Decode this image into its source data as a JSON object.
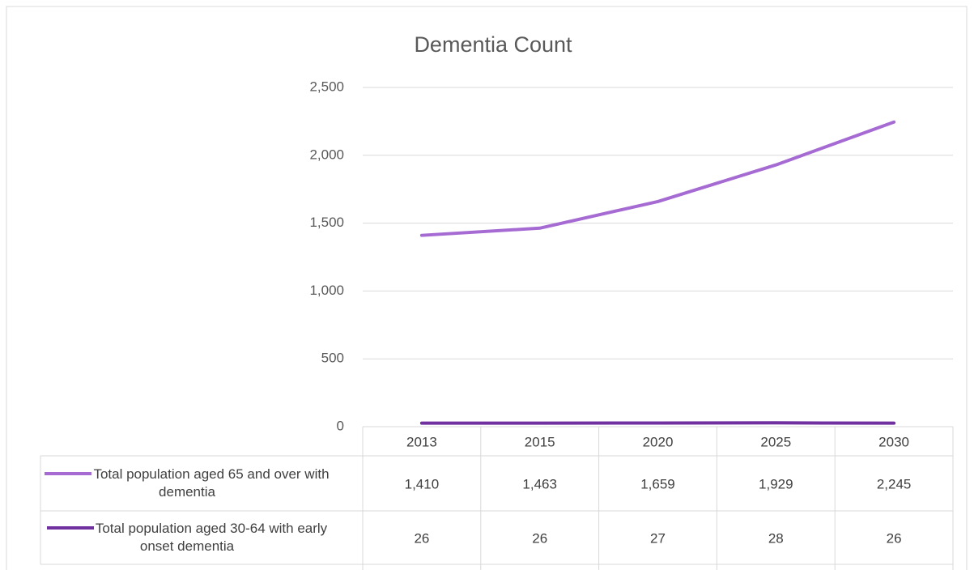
{
  "chart_data": {
    "type": "line",
    "title": "Dementia Count",
    "categories": [
      "2013",
      "2015",
      "2020",
      "2025",
      "2030"
    ],
    "series": [
      {
        "name": "Total population aged 65 and over with dementia",
        "color": "#a66bd3",
        "values": [
          1410,
          1463,
          1659,
          1929,
          2245
        ],
        "value_labels": [
          "1,410",
          "1,463",
          "1,659",
          "1,929",
          "2,245"
        ]
      },
      {
        "name": "Total population aged 30-64 with early onset dementia",
        "color": "#7030a0",
        "values": [
          26,
          26,
          27,
          28,
          26
        ]
      }
    ],
    "ylim": [
      0,
      2500
    ],
    "yticks": [
      0,
      500,
      {
        "value": 1000,
        "label": "1,000"
      },
      {
        "value": 1500,
        "label": "1,500"
      },
      {
        "value": 2000,
        "label": "2,000"
      },
      {
        "value": 2500,
        "label": "2,500"
      }
    ],
    "grid": true,
    "data_table": true
  }
}
